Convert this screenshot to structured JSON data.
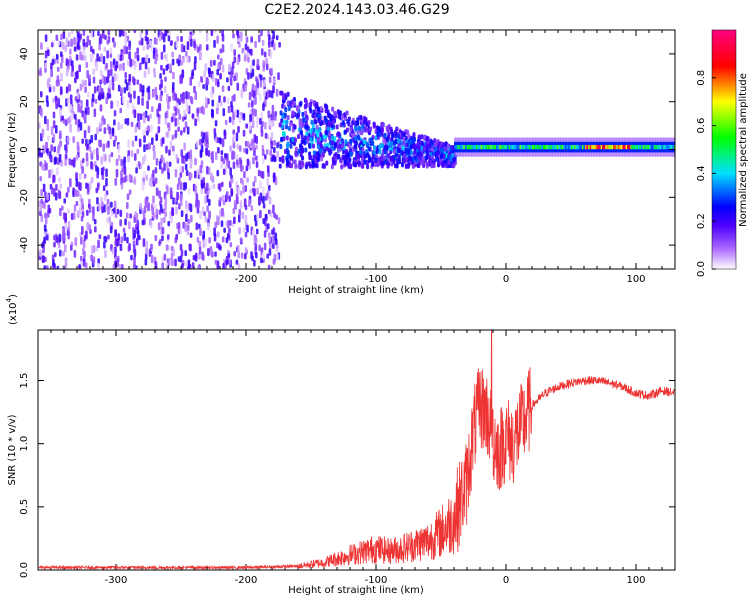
{
  "figure_title": "C2E2.2024.143.03.46.G29",
  "chart_data": [
    {
      "type": "heatmap",
      "xlabel": "Height of straight line (km)",
      "ylabel": "Frequency (Hz)",
      "xlim": [
        -360,
        130
      ],
      "ylim": [
        -50,
        50
      ],
      "x_ticks": [
        -300,
        -200,
        -100,
        0,
        100
      ],
      "x_tick_labels": [
        "-300",
        "-200",
        "-100",
        "0",
        "100"
      ],
      "y_ticks": [
        -40,
        -20,
        0,
        20,
        40
      ],
      "y_tick_labels": [
        "-40",
        "-20",
        "0",
        "20",
        "40"
      ],
      "colorbar": {
        "label": "Normalized spectral amplitude",
        "range": [
          0,
          1
        ],
        "ticks": [
          0,
          0.2,
          0.4,
          0.6,
          0.8
        ],
        "tick_labels": [
          "0.0",
          "0.2",
          "0.4",
          "0.6",
          "0.8"
        ],
        "colormap": [
          "#ffffff",
          "#8000ff",
          "#0000ff",
          "#00ffff",
          "#00ff00",
          "#ffff00",
          "#ff0000",
          "#ff0080"
        ]
      },
      "regions": [
        {
          "x_range": [
            -360,
            -175
          ],
          "freq_range": [
            -50,
            50
          ],
          "amplitude": [
            0.02,
            0.15
          ]
        },
        {
          "x_range": [
            -175,
            -40
          ],
          "freq_center_start": 8,
          "freq_center_end": -3,
          "amplitude": [
            0.1,
            0.45
          ]
        },
        {
          "x_range": [
            -40,
            130
          ],
          "freq_center": 1,
          "amplitude": [
            0.3,
            0.95
          ]
        }
      ]
    },
    {
      "type": "line",
      "xlabel": "Height of straight line (km)",
      "ylabel": "SNR (10 * v/v)",
      "y_multiplier_label": "(x10",
      "y_multiplier_exp": "4",
      "xlim": [
        -360,
        130
      ],
      "ylim": [
        0,
        1.9
      ],
      "x_ticks": [
        -300,
        -200,
        -100,
        0,
        100
      ],
      "x_tick_labels": [
        "-300",
        "-200",
        "-100",
        "0",
        "100"
      ],
      "y_ticks": [
        0,
        0.5,
        1.0,
        1.5
      ],
      "y_tick_labels": [
        "0.0",
        "0.5",
        "1.0",
        "1.5"
      ],
      "color": "#ee3333",
      "series": [
        {
          "x": [
            -360,
            -300,
            -250,
            -200,
            -160,
            -140,
            -120,
            -100,
            -90,
            -80,
            -70,
            -60,
            -50,
            -40,
            -30,
            -25,
            -20,
            -15,
            -10,
            -5,
            0,
            5,
            10,
            15,
            20,
            30,
            40,
            50,
            60,
            70,
            80,
            90,
            100,
            110,
            120,
            130
          ],
          "values": [
            0.02,
            0.02,
            0.02,
            0.02,
            0.03,
            0.06,
            0.12,
            0.17,
            0.15,
            0.17,
            0.2,
            0.23,
            0.3,
            0.4,
            0.7,
            1.1,
            1.3,
            1.25,
            1.05,
            0.95,
            1.05,
            1.0,
            1.1,
            1.2,
            1.3,
            1.4,
            1.45,
            1.48,
            1.5,
            1.5,
            1.48,
            1.45,
            1.4,
            1.38,
            1.42,
            1.4
          ]
        }
      ]
    }
  ]
}
